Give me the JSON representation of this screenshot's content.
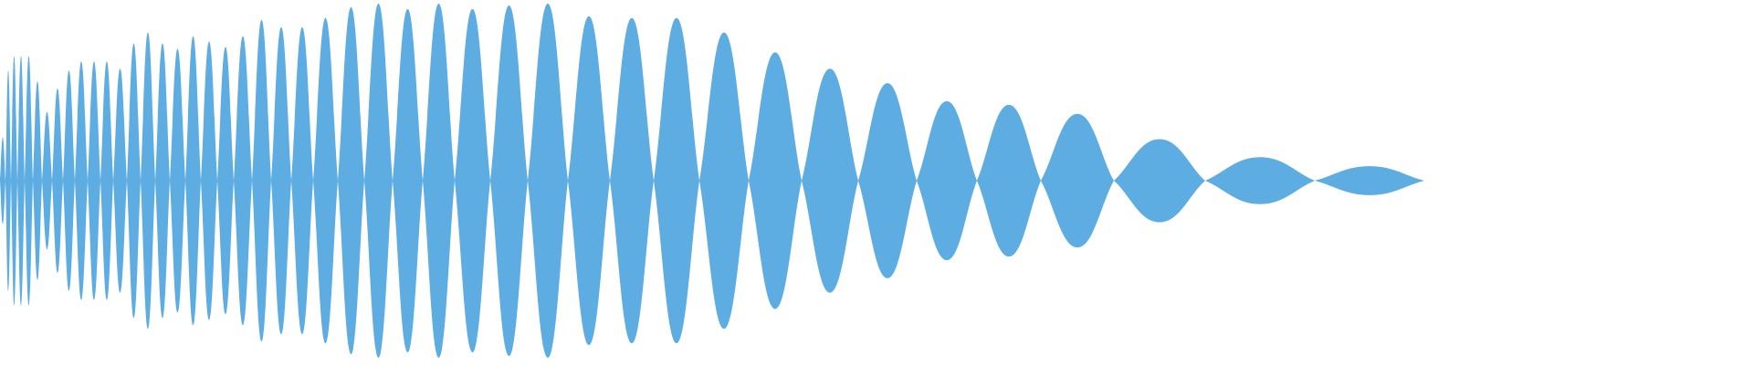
{
  "waveform": {
    "color": "#5dade2",
    "lobe_count": 45,
    "lobe_amplitudes": [
      0.24,
      0.61,
      0.69,
      0.69,
      0.69,
      0.55,
      0.38,
      0.51,
      0.61,
      0.66,
      0.66,
      0.66,
      0.62,
      0.76,
      0.82,
      0.76,
      0.73,
      0.8,
      0.77,
      0.74,
      0.8,
      0.89,
      0.85,
      0.85,
      0.9,
      0.96,
      0.98,
      0.95,
      0.98,
      0.95,
      0.97,
      0.98,
      0.91,
      0.9,
      0.9,
      0.82,
      0.71,
      0.62,
      0.54,
      0.44,
      0.42,
      0.37,
      0.23,
      0.13,
      0.08
    ]
  }
}
